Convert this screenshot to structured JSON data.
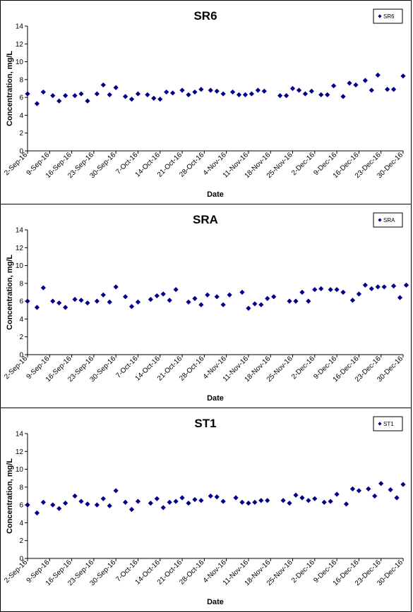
{
  "chart_data": [
    {
      "type": "scatter",
      "title": "SR6",
      "xlabel": "Date",
      "ylabel": "Concentration, mg/L",
      "ylim": [
        0,
        14
      ],
      "yticks": [
        0,
        2,
        4,
        6,
        8,
        10,
        12,
        14
      ],
      "xlim": [
        "2016-09-02",
        "2016-12-30"
      ],
      "xtick_labels": [
        "2-Sep-16",
        "9-Sep-16",
        "16-Sep-16",
        "23-Sep-16",
        "30-Sep-16",
        "7-Oct-16",
        "14-Oct-16",
        "21-Oct-16",
        "28-Oct-16",
        "4-Nov-16",
        "11-Nov-16",
        "18-Nov-16",
        "25-Nov-16",
        "2-Dec-16",
        "9-Dec-16",
        "16-Dec-16",
        "23-Dec-16",
        "30-Dec-16"
      ],
      "legend": "top-right",
      "grid": false,
      "marker_color": "#00008B",
      "series": [
        {
          "name": "SR6",
          "x": [
            "2016-09-02",
            "2016-09-05",
            "2016-09-07",
            "2016-09-10",
            "2016-09-12",
            "2016-09-14",
            "2016-09-17",
            "2016-09-19",
            "2016-09-21",
            "2016-09-24",
            "2016-09-26",
            "2016-09-28",
            "2016-09-30",
            "2016-10-03",
            "2016-10-05",
            "2016-10-07",
            "2016-10-10",
            "2016-10-12",
            "2016-10-14",
            "2016-10-16",
            "2016-10-18",
            "2016-10-21",
            "2016-10-23",
            "2016-10-25",
            "2016-10-27",
            "2016-10-30",
            "2016-11-01",
            "2016-11-03",
            "2016-11-06",
            "2016-11-08",
            "2016-11-10",
            "2016-11-12",
            "2016-11-14",
            "2016-11-16",
            "2016-11-21",
            "2016-11-23",
            "2016-11-25",
            "2016-11-27",
            "2016-11-29",
            "2016-12-01",
            "2016-12-04",
            "2016-12-06",
            "2016-12-08",
            "2016-12-11",
            "2016-12-13",
            "2016-12-15",
            "2016-12-18",
            "2016-12-20",
            "2016-12-22",
            "2016-12-25",
            "2016-12-27",
            "2016-12-30"
          ],
          "y": [
            6.4,
            5.3,
            6.6,
            6.2,
            5.6,
            6.2,
            6.2,
            6.4,
            5.6,
            6.4,
            7.4,
            6.3,
            7.1,
            6.1,
            5.8,
            6.4,
            6.3,
            5.9,
            5.8,
            6.6,
            6.5,
            6.8,
            6.3,
            6.6,
            6.9,
            6.8,
            6.7,
            6.4,
            6.6,
            6.3,
            6.3,
            6.4,
            6.8,
            6.7,
            6.2,
            6.2,
            7.0,
            6.8,
            6.4,
            6.7,
            6.3,
            6.3,
            7.3,
            6.1,
            7.6,
            7.4,
            7.9,
            6.8,
            8.5,
            6.9,
            6.9,
            8.4
          ]
        }
      ]
    },
    {
      "type": "scatter",
      "title": "SRA",
      "xlabel": "Date",
      "ylabel": "Concentration, mg/L",
      "ylim": [
        0,
        14
      ],
      "yticks": [
        0,
        2,
        4,
        6,
        8,
        10,
        12,
        14
      ],
      "xlim": [
        "2016-09-02",
        "2016-12-30"
      ],
      "xtick_labels": [
        "2-Sep-16",
        "9-Sep-16",
        "16-Sep-16",
        "23-Sep-16",
        "30-Sep-16",
        "7-Oct-16",
        "14-Oct-16",
        "21-Oct-16",
        "28-Oct-16",
        "4-Nov-16",
        "11-Nov-16",
        "18-Nov-16",
        "25-Nov-16",
        "2-Dec-16",
        "9-Dec-16",
        "16-Dec-16",
        "23-Dec-16",
        "30-Dec-16"
      ],
      "legend": "top-right",
      "grid": false,
      "marker_color": "#00008B",
      "series": [
        {
          "name": "SRA",
          "x": [
            "2016-09-02",
            "2016-09-05",
            "2016-09-07",
            "2016-09-10",
            "2016-09-12",
            "2016-09-14",
            "2016-09-17",
            "2016-09-19",
            "2016-09-21",
            "2016-09-24",
            "2016-09-26",
            "2016-09-28",
            "2016-09-30",
            "2016-10-03",
            "2016-10-05",
            "2016-10-07",
            "2016-10-11",
            "2016-10-13",
            "2016-10-15",
            "2016-10-17",
            "2016-10-19",
            "2016-10-23",
            "2016-10-25",
            "2016-10-27",
            "2016-10-29",
            "2016-11-01",
            "2016-11-03",
            "2016-11-05",
            "2016-11-09",
            "2016-11-11",
            "2016-11-13",
            "2016-11-15",
            "2016-11-17",
            "2016-11-19",
            "2016-11-24",
            "2016-11-26",
            "2016-11-28",
            "2016-11-30",
            "2016-12-02",
            "2016-12-04",
            "2016-12-07",
            "2016-12-09",
            "2016-12-11",
            "2016-12-14",
            "2016-12-16",
            "2016-12-18",
            "2016-12-20",
            "2016-12-22",
            "2016-12-24",
            "2016-12-27",
            "2016-12-29",
            "2016-12-31"
          ],
          "y": [
            6.0,
            5.3,
            7.5,
            6.0,
            5.8,
            5.3,
            6.2,
            6.1,
            5.8,
            6.0,
            6.7,
            5.9,
            7.6,
            6.5,
            5.4,
            5.9,
            6.2,
            6.6,
            6.8,
            6.1,
            7.3,
            5.9,
            6.3,
            5.6,
            6.7,
            6.5,
            5.6,
            6.7,
            7.0,
            5.2,
            5.7,
            5.6,
            6.3,
            6.5,
            6.0,
            6.0,
            7.0,
            6.0,
            7.3,
            7.4,
            7.3,
            7.3,
            7.0,
            6.1,
            6.8,
            7.8,
            7.4,
            7.6,
            7.6,
            7.7,
            6.4,
            7.8
          ]
        }
      ]
    },
    {
      "type": "scatter",
      "title": "ST1",
      "xlabel": "Date",
      "ylabel": "Concentration, mg/L",
      "ylim": [
        0,
        14
      ],
      "yticks": [
        0,
        2,
        4,
        6,
        8,
        10,
        12,
        14
      ],
      "xlim": [
        "2016-09-02",
        "2016-12-30"
      ],
      "xtick_labels": [
        "2-Sep-16",
        "9-Sep-16",
        "16-Sep-16",
        "23-Sep-16",
        "30-Sep-16",
        "7-Oct-16",
        "14-Oct-16",
        "21-Oct-16",
        "28-Oct-16",
        "4-Nov-16",
        "11-Nov-16",
        "18-Nov-16",
        "25-Nov-16",
        "2-Dec-16",
        "9-Dec-16",
        "16-Dec-16",
        "23-Dec-16",
        "30-Dec-16"
      ],
      "legend": "top-right",
      "grid": false,
      "marker_color": "#00008B",
      "series": [
        {
          "name": "ST1",
          "x": [
            "2016-09-02",
            "2016-09-05",
            "2016-09-07",
            "2016-09-10",
            "2016-09-12",
            "2016-09-14",
            "2016-09-17",
            "2016-09-19",
            "2016-09-21",
            "2016-09-24",
            "2016-09-26",
            "2016-09-28",
            "2016-09-30",
            "2016-10-03",
            "2016-10-05",
            "2016-10-07",
            "2016-10-11",
            "2016-10-13",
            "2016-10-15",
            "2016-10-17",
            "2016-10-19",
            "2016-10-21",
            "2016-10-23",
            "2016-10-25",
            "2016-10-27",
            "2016-10-30",
            "2016-11-01",
            "2016-11-03",
            "2016-11-07",
            "2016-11-09",
            "2016-11-11",
            "2016-11-13",
            "2016-11-15",
            "2016-11-17",
            "2016-11-22",
            "2016-11-24",
            "2016-11-26",
            "2016-11-28",
            "2016-11-30",
            "2016-12-02",
            "2016-12-05",
            "2016-12-07",
            "2016-12-09",
            "2016-12-12",
            "2016-12-14",
            "2016-12-16",
            "2016-12-19",
            "2016-12-21",
            "2016-12-23",
            "2016-12-26",
            "2016-12-28",
            "2016-12-30"
          ],
          "y": [
            6.0,
            5.1,
            6.3,
            6.0,
            5.6,
            6.2,
            7.0,
            6.4,
            6.1,
            6.0,
            6.7,
            5.9,
            7.6,
            6.3,
            5.5,
            6.4,
            6.2,
            6.7,
            5.7,
            6.3,
            6.4,
            6.8,
            6.2,
            6.6,
            6.5,
            7.0,
            6.9,
            6.4,
            6.8,
            6.3,
            6.2,
            6.3,
            6.5,
            6.5,
            6.5,
            6.2,
            7.1,
            6.8,
            6.5,
            6.7,
            6.3,
            6.4,
            7.2,
            6.1,
            7.8,
            7.6,
            7.8,
            7.0,
            8.4,
            7.7,
            6.8,
            8.3
          ]
        }
      ]
    }
  ]
}
